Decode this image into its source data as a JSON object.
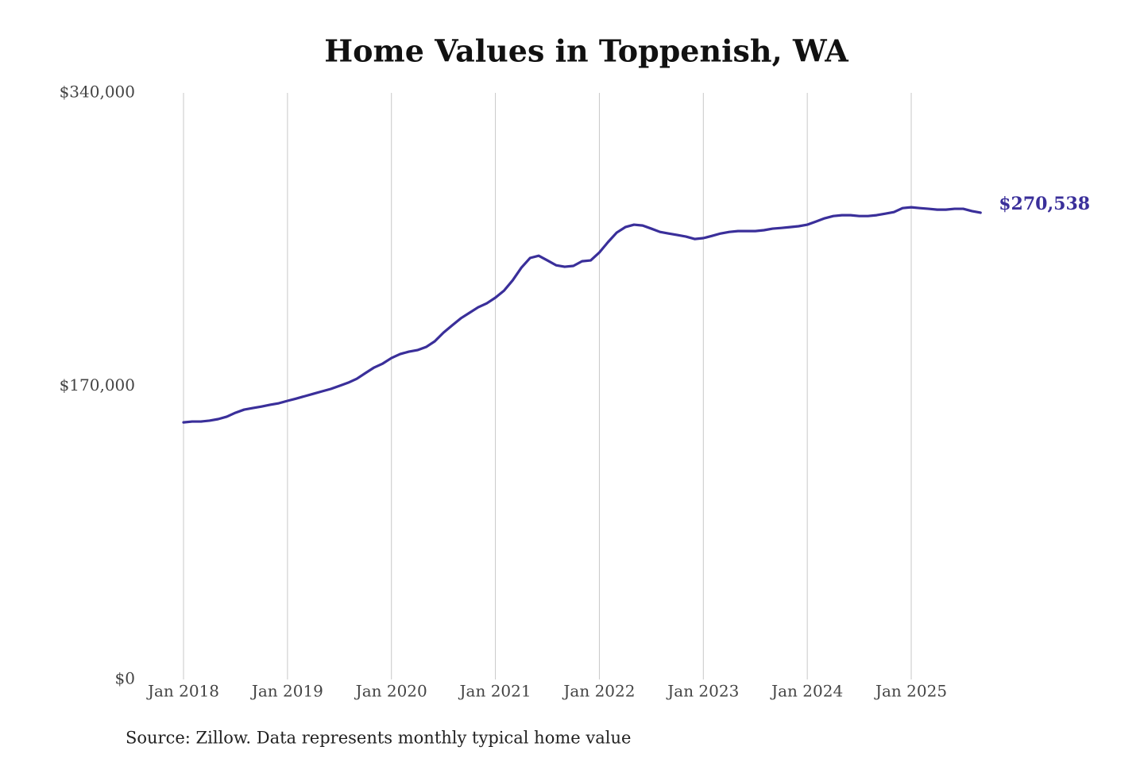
{
  "chart_data": {
    "type": "line",
    "title": "Home Values in Toppenish, WA",
    "source": "Source: Zillow. Data represents monthly typical home value",
    "x": [
      "Jan 2018",
      "Feb 2018",
      "Mar 2018",
      "Apr 2018",
      "May 2018",
      "Jun 2018",
      "Jul 2018",
      "Aug 2018",
      "Sep 2018",
      "Oct 2018",
      "Nov 2018",
      "Dec 2018",
      "Jan 2019",
      "Feb 2019",
      "Mar 2019",
      "Apr 2019",
      "May 2019",
      "Jun 2019",
      "Jul 2019",
      "Aug 2019",
      "Sep 2019",
      "Oct 2019",
      "Nov 2019",
      "Dec 2019",
      "Jan 2020",
      "Feb 2020",
      "Mar 2020",
      "Apr 2020",
      "May 2020",
      "Jun 2020",
      "Jul 2020",
      "Aug 2020",
      "Sep 2020",
      "Oct 2020",
      "Nov 2020",
      "Dec 2020",
      "Jan 2021",
      "Feb 2021",
      "Mar 2021",
      "Apr 2021",
      "May 2021",
      "Jun 2021",
      "Jul 2021",
      "Aug 2021",
      "Sep 2021",
      "Oct 2021",
      "Nov 2021",
      "Dec 2021",
      "Jan 2022",
      "Feb 2022",
      "Mar 2022",
      "Apr 2022",
      "May 2022",
      "Jun 2022",
      "Jul 2022",
      "Aug 2022",
      "Sep 2022",
      "Oct 2022",
      "Nov 2022",
      "Dec 2022",
      "Jan 2023",
      "Feb 2023",
      "Mar 2023",
      "Apr 2023",
      "May 2023",
      "Jun 2023",
      "Jul 2023",
      "Aug 2023",
      "Sep 2023",
      "Oct 2023",
      "Nov 2023",
      "Dec 2023",
      "Jan 2024",
      "Feb 2024",
      "Mar 2024",
      "Apr 2024",
      "May 2024",
      "Jun 2024",
      "Jul 2024",
      "Aug 2024",
      "Sep 2024",
      "Oct 2024",
      "Nov 2024",
      "Dec 2024",
      "Jan 2025",
      "Feb 2025",
      "Mar 2025",
      "Apr 2025",
      "May 2025",
      "Jun 2025",
      "Jul 2025",
      "Aug 2025",
      "Sep 2025"
    ],
    "values": [
      149000,
      149500,
      149500,
      150000,
      150900,
      152300,
      154600,
      156400,
      157300,
      158200,
      159200,
      160100,
      161500,
      162800,
      164200,
      165600,
      167000,
      168400,
      170200,
      172000,
      174300,
      177600,
      180800,
      183100,
      186300,
      188600,
      190000,
      190900,
      192700,
      196000,
      201000,
      205200,
      209300,
      212500,
      215700,
      218000,
      221300,
      225400,
      231400,
      238700,
      244300,
      245600,
      242900,
      240100,
      239200,
      239700,
      242400,
      242900,
      247500,
      253500,
      259000,
      262200,
      263600,
      263100,
      261300,
      259400,
      258500,
      257600,
      256700,
      255300,
      255800,
      257100,
      258500,
      259400,
      259900,
      259900,
      259900,
      260400,
      261300,
      261700,
      262200,
      262700,
      263600,
      265400,
      267300,
      268600,
      269100,
      269100,
      268600,
      268600,
      269100,
      270000,
      270900,
      273200,
      273700,
      273200,
      272800,
      272300,
      272300,
      272800,
      272800,
      271500,
      270538
    ],
    "value_labels": [
      null,
      null,
      null,
      null,
      null,
      null,
      null,
      null,
      null,
      null,
      null,
      null,
      null,
      null,
      null,
      null,
      null,
      null,
      null,
      null,
      null,
      null,
      null,
      null,
      null,
      null,
      null,
      null,
      null,
      null,
      null,
      null,
      null,
      null,
      null,
      null,
      null,
      null,
      null,
      null,
      null,
      null,
      null,
      null,
      null,
      null,
      null,
      null,
      null,
      null,
      null,
      null,
      null,
      null,
      null,
      null,
      null,
      null,
      null,
      null,
      null,
      null,
      null,
      null,
      null,
      null,
      null,
      null,
      null,
      null,
      null,
      null,
      null,
      null,
      null,
      null,
      null,
      null,
      null,
      null,
      null,
      null,
      null,
      null,
      null,
      null,
      null,
      null,
      null,
      null,
      null,
      null,
      "$270,538"
    ],
    "color": "#3a2f9a",
    "ylim": [
      0,
      340000
    ],
    "yticks": [
      {
        "value": 0,
        "label": "$0"
      },
      {
        "value": 170000,
        "label": "$170,000"
      },
      {
        "value": 340000,
        "label": "$340,000"
      }
    ],
    "xticks": [
      "Jan 2018",
      "Jan 2019",
      "Jan 2020",
      "Jan 2021",
      "Jan 2022",
      "Jan 2023",
      "Jan 2024",
      "Jan 2025"
    ],
    "grid": "x"
  }
}
